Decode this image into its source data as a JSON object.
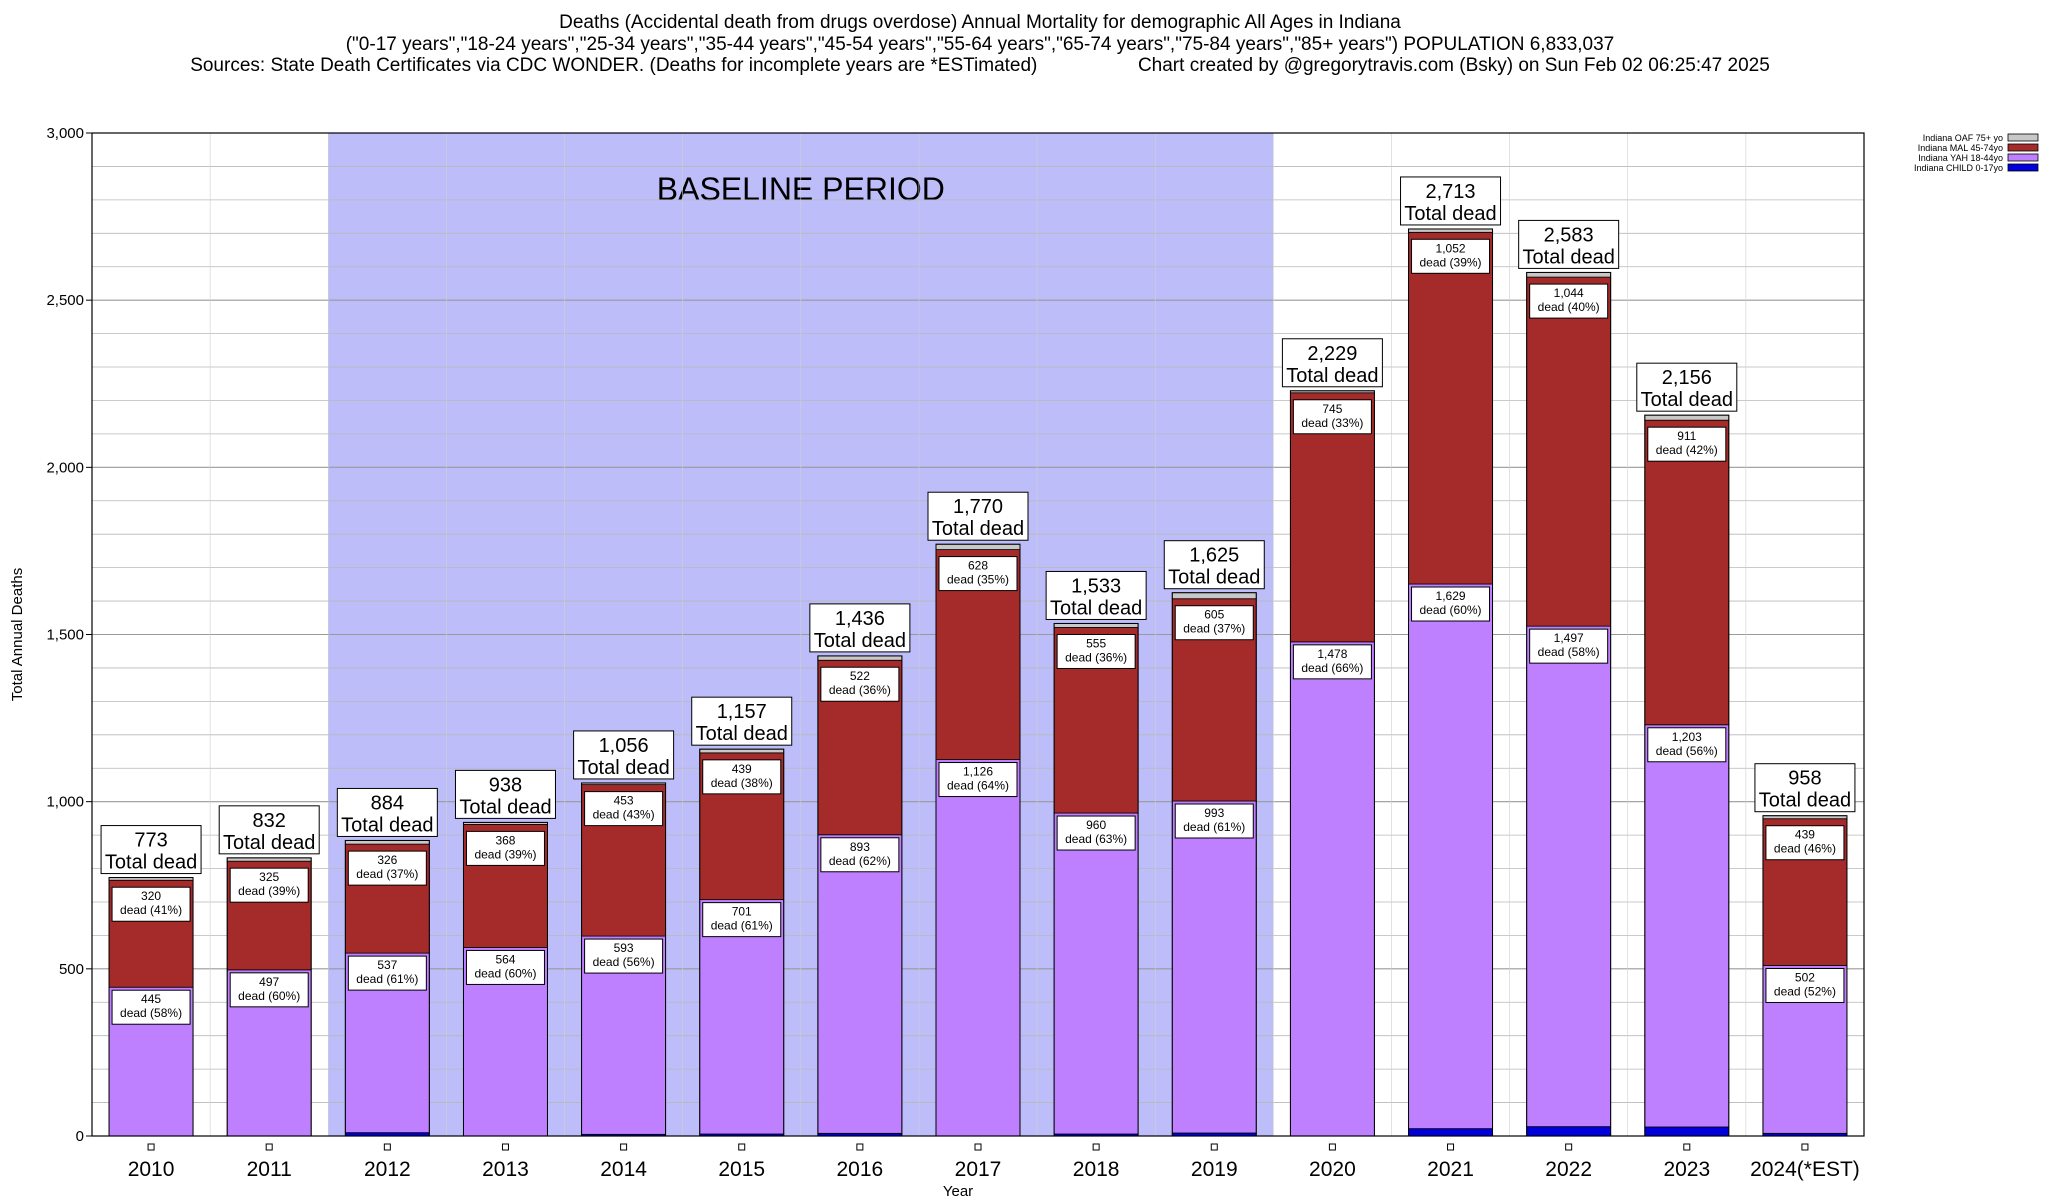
{
  "header": {
    "title_line1": "Deaths (Accidental death from drugs overdose) Annual Mortality for demographic All Ages in Indiana",
    "title_line2": "(\"0-17 years\",\"18-24 years\",\"25-34 years\",\"35-44 years\",\"45-54 years\",\"55-64 years\",\"65-74 years\",\"75-84 years\",\"85+ years\") POPULATION 6,833,037",
    "title_line3_left": "Sources: State Death Certificates via CDC WONDER. (Deaths for incomplete years are *ESTimated)",
    "title_line3_right": "Chart created by @gregorytravis.com (Bsky) on Sun Feb 02 06:25:47 2025"
  },
  "chart_data": {
    "type": "bar",
    "stacked": true,
    "xlabel": "Year",
    "ylabel": "Total Annual Deaths",
    "ylim": [
      0,
      3000
    ],
    "yticks": [
      0,
      500,
      1000,
      1500,
      2000,
      2500,
      3000
    ],
    "ytick_labels": [
      "0",
      "500",
      "1,000",
      "1,500",
      "2,000",
      "2,500",
      "3,000"
    ],
    "grid": true,
    "legend_position": "top-right",
    "categories": [
      "2010",
      "2011",
      "2012",
      "2013",
      "2014",
      "2015",
      "2016",
      "2017",
      "2018",
      "2019",
      "2020",
      "2021",
      "2022",
      "2023",
      "2024(*EST)"
    ],
    "baseline": {
      "label": "BASELINE PERIOD",
      "from": "2012",
      "to": "2019",
      "color": "#bdbdfa"
    },
    "series": [
      {
        "name": "Indiana CHILD 0-17yo",
        "color": "#0000dd",
        "values": [
          0,
          0,
          10,
          0,
          5,
          6,
          8,
          0,
          6,
          9,
          0,
          22,
          28,
          27,
          8
        ]
      },
      {
        "name": "Indiana YAH 18-44yo",
        "color": "#bf80ff",
        "values": [
          445,
          497,
          537,
          564,
          593,
          701,
          893,
          1126,
          960,
          993,
          1478,
          1629,
          1497,
          1203,
          502
        ]
      },
      {
        "name": "Indiana MAL 45-74yo",
        "color": "#a52a2a",
        "values": [
          320,
          325,
          326,
          368,
          453,
          439,
          522,
          628,
          555,
          605,
          745,
          1052,
          1044,
          911,
          439
        ]
      },
      {
        "name": "Indiana OAF 75+ yo",
        "color": "#c8c8c8",
        "values": [
          8,
          10,
          11,
          6,
          5,
          11,
          13,
          16,
          12,
          18,
          6,
          10,
          14,
          15,
          9
        ]
      }
    ],
    "totals": [
      773,
      832,
      884,
      938,
      1056,
      1157,
      1436,
      1770,
      1533,
      1625,
      2229,
      2713,
      2583,
      2156,
      958
    ],
    "total_labels": [
      "773",
      "832",
      "884",
      "938",
      "1,056",
      "1,157",
      "1,436",
      "1,770",
      "1,533",
      "1,625",
      "2,229",
      "2,713",
      "2,583",
      "2,156",
      "958"
    ],
    "total_suffix": "Total dead",
    "yah_labels": [
      "445",
      "497",
      "537",
      "564",
      "593",
      "701",
      "893",
      "1,126",
      "960",
      "993",
      "1,478",
      "1,629",
      "1,497",
      "1,203",
      "502"
    ],
    "yah_pct": [
      "dead (58%)",
      "dead (60%)",
      "dead (61%)",
      "dead (60%)",
      "dead (56%)",
      "dead (61%)",
      "dead (62%)",
      "dead (64%)",
      "dead (63%)",
      "dead (61%)",
      "dead (66%)",
      "dead (60%)",
      "dead (58%)",
      "dead (56%)",
      "dead (52%)"
    ],
    "mal_labels": [
      "320",
      "325",
      "326",
      "368",
      "453",
      "439",
      "522",
      "628",
      "555",
      "605",
      "745",
      "1,052",
      "1,044",
      "911",
      "439"
    ],
    "mal_pct": [
      "dead (41%)",
      "dead (39%)",
      "dead (37%)",
      "dead (39%)",
      "dead (43%)",
      "dead (38%)",
      "dead (36%)",
      "dead (35%)",
      "dead (36%)",
      "dead (37%)",
      "dead (33%)",
      "dead (39%)",
      "dead (40%)",
      "dead (42%)",
      "dead (46%)"
    ]
  }
}
